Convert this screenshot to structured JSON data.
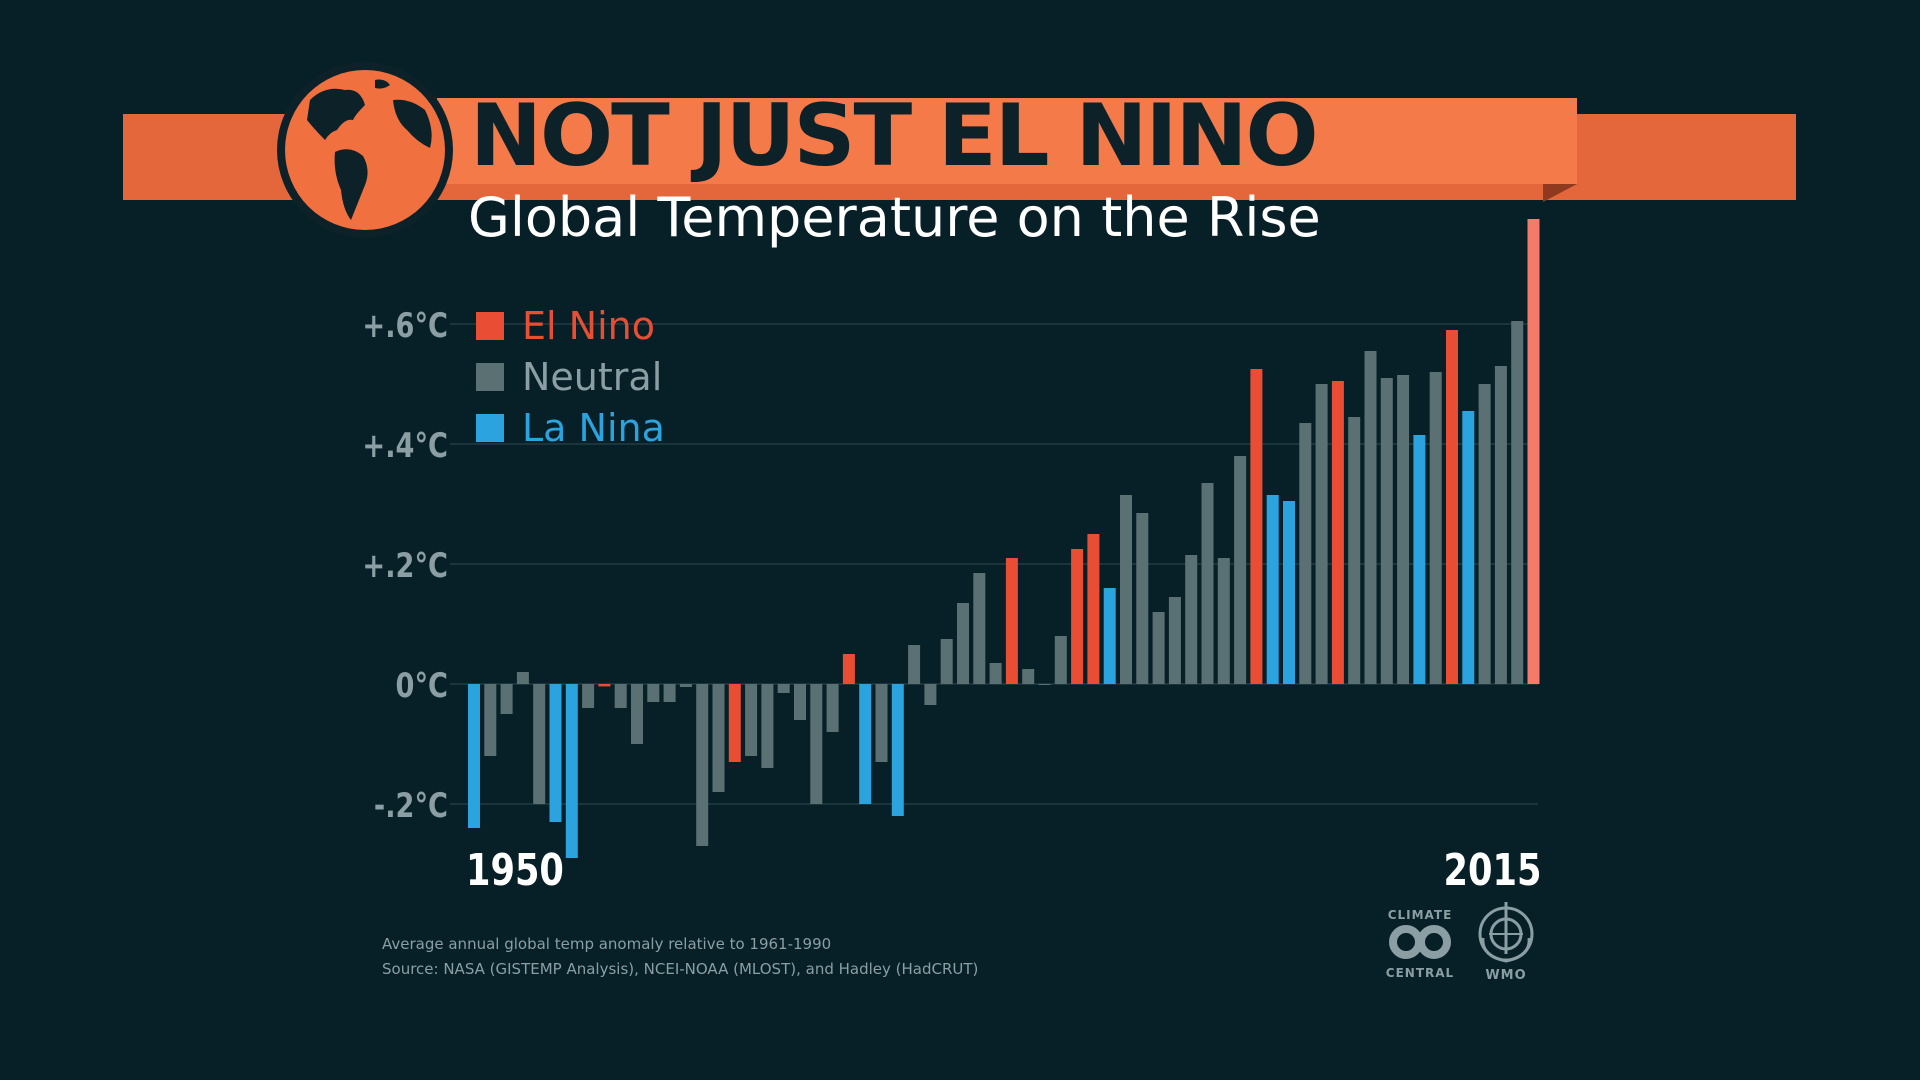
{
  "header": {
    "title": "NOT JUST EL NINO",
    "subtitle": "Global Temperature on the Rise"
  },
  "colors": {
    "background": "#072028",
    "el_nino": "#e94e35",
    "neutral": "#5b7073",
    "la_nina": "#2aa3de",
    "highlight_2015": "#f47a6a",
    "grid": "#2e4a4f",
    "axis_text": "#8a9ea3"
  },
  "legend": [
    {
      "key": "el_nino",
      "label": "El Nino",
      "color": "#e94e35"
    },
    {
      "key": "neutral",
      "label": "Neutral",
      "color": "#8a9ea3"
    },
    {
      "key": "la_nina",
      "label": "La Nina",
      "color": "#2aa3de"
    }
  ],
  "footer": {
    "note_line1": "Average annual global temp anomaly relative to 1961-1990",
    "note_line2": "Source: NASA (GISTEMP Analysis), NCEI-NOAA (MLOST), and Hadley (HadCRUT)"
  },
  "logos": {
    "climate_central_top": "CLIMATE",
    "climate_central_bottom": "CENTRAL",
    "wmo": "WMO"
  },
  "chart_data": {
    "type": "bar",
    "title": "NOT JUST EL NINO",
    "subtitle": "Global Temperature on the Rise",
    "xlabel": "",
    "ylabel": "Average annual global temp anomaly relative to 1961-1990",
    "ylim": [
      -0.3,
      0.8
    ],
    "y_ticks": [
      {
        "value": 0.6,
        "label": "+.6°C"
      },
      {
        "value": 0.4,
        "label": "+.4°C"
      },
      {
        "value": 0.2,
        "label": "+.2°C"
      },
      {
        "value": 0.0,
        "label": "0°C"
      },
      {
        "value": -0.2,
        "label": "-.2°C"
      }
    ],
    "x_labels": [
      {
        "year": 1950,
        "label": "1950"
      },
      {
        "year": 2015,
        "label": "2015"
      }
    ],
    "grid": true,
    "legend_position": "top-left",
    "categories": [
      1950,
      1951,
      1952,
      1953,
      1954,
      1955,
      1956,
      1957,
      1958,
      1959,
      1960,
      1961,
      1962,
      1963,
      1964,
      1965,
      1966,
      1967,
      1968,
      1969,
      1970,
      1971,
      1972,
      1973,
      1974,
      1975,
      1976,
      1977,
      1978,
      1979,
      1980,
      1981,
      1982,
      1983,
      1984,
      1985,
      1986,
      1987,
      1988,
      1989,
      1990,
      1991,
      1992,
      1993,
      1994,
      1995,
      1996,
      1997,
      1998,
      1999,
      2000,
      2001,
      2002,
      2003,
      2004,
      2005,
      2006,
      2007,
      2008,
      2009,
      2010,
      2011,
      2012,
      2013,
      2014,
      2015
    ],
    "values": [
      -0.24,
      -0.12,
      -0.05,
      0.02,
      -0.2,
      -0.23,
      -0.29,
      -0.04,
      -0.004,
      -0.04,
      -0.1,
      -0.03,
      -0.03,
      -0.005,
      -0.27,
      -0.18,
      -0.13,
      -0.12,
      -0.14,
      -0.015,
      -0.06,
      -0.2,
      -0.08,
      0.05,
      -0.2,
      -0.13,
      -0.22,
      0.065,
      -0.035,
      0.075,
      0.135,
      0.185,
      0.035,
      0.21,
      0.025,
      0.0,
      0.08,
      0.225,
      0.25,
      0.16,
      0.315,
      0.285,
      0.12,
      0.145,
      0.215,
      0.335,
      0.21,
      0.38,
      0.525,
      0.315,
      0.305,
      0.435,
      0.5,
      0.505,
      0.445,
      0.555,
      0.51,
      0.515,
      0.415,
      0.52,
      0.59,
      0.455,
      0.5,
      0.53,
      0.605,
      0.775
    ],
    "phases": [
      "la_nina",
      "neutral",
      "neutral",
      "neutral",
      "neutral",
      "la_nina",
      "la_nina",
      "neutral",
      "el_nino",
      "neutral",
      "neutral",
      "neutral",
      "neutral",
      "neutral",
      "neutral",
      "neutral",
      "el_nino",
      "neutral",
      "neutral",
      "neutral",
      "neutral",
      "neutral",
      "neutral",
      "el_nino",
      "la_nina",
      "neutral",
      "la_nina",
      "neutral",
      "neutral",
      "neutral",
      "neutral",
      "neutral",
      "neutral",
      "el_nino",
      "neutral",
      "neutral",
      "neutral",
      "el_nino",
      "el_nino",
      "la_nina",
      "neutral",
      "neutral",
      "neutral",
      "neutral",
      "neutral",
      "neutral",
      "neutral",
      "neutral",
      "el_nino",
      "la_nina",
      "la_nina",
      "neutral",
      "neutral",
      "el_nino",
      "neutral",
      "neutral",
      "neutral",
      "neutral",
      "la_nina",
      "neutral",
      "el_nino",
      "la_nina",
      "neutral",
      "neutral",
      "neutral",
      "el_nino_2015"
    ]
  }
}
